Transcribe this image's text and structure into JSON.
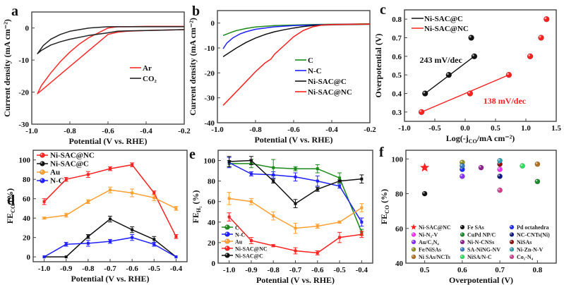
{
  "figure": {
    "panels": [
      "a",
      "b",
      "c",
      "d",
      "e",
      "f"
    ]
  },
  "chart_data": [
    {
      "id": "a",
      "panel_label": "a",
      "type": "line",
      "title": "",
      "xlabel": "Potential (V vs. RHE)",
      "ylabel": "Current density (mA cm⁻²)",
      "xlim": [
        -1.0,
        -0.2
      ],
      "ylim": [
        -30,
        5
      ],
      "xticks": [
        -1.0,
        -0.8,
        -0.6,
        -0.4,
        -0.2
      ],
      "xtick_labels": [
        "-1.0",
        "-0.8",
        "-0.6",
        "-0.4",
        "-0.2"
      ],
      "yticks": [
        -30,
        -20,
        -10,
        0
      ],
      "ytick_labels": [
        "-30",
        "-20",
        "-10",
        "0"
      ],
      "legend_position": "center-right",
      "series": [
        {
          "name": "Ar",
          "color": "#ff2a2a",
          "x": [
            -0.2,
            -0.4,
            -0.5,
            -0.55,
            -0.6,
            -0.65,
            -0.7,
            -0.75,
            -0.8,
            -0.85,
            -0.9,
            -0.95,
            -0.97,
            -0.96,
            -0.93,
            -0.9,
            -0.85,
            -0.8,
            -0.75,
            -0.7,
            -0.65,
            -0.6,
            -0.55,
            -0.5,
            -0.4,
            -0.2
          ],
          "y": [
            0.5,
            0.5,
            0.4,
            0.4,
            0.0,
            -1.5,
            -3.0,
            -5.0,
            -7.5,
            -10.5,
            -14.0,
            -18.0,
            -20.5,
            -20.0,
            -18.5,
            -17.0,
            -14.5,
            -12.0,
            -9.5,
            -7.0,
            -4.5,
            -2.0,
            -1.3,
            -1.0,
            -0.8,
            -0.5
          ]
        },
        {
          "name": "CO₂",
          "color": "#222222",
          "x": [
            -0.2,
            -0.4,
            -0.5,
            -0.6,
            -0.7,
            -0.8,
            -0.85,
            -0.9,
            -0.94,
            -0.97,
            -0.95,
            -0.9,
            -0.85,
            -0.8,
            -0.7,
            -0.6,
            -0.55,
            -0.5,
            -0.4,
            -0.2
          ],
          "y": [
            0.4,
            0.4,
            0.4,
            0.4,
            0.0,
            -1.0,
            -2.0,
            -3.5,
            -5.5,
            -8.0,
            -7.0,
            -5.3,
            -4.3,
            -3.5,
            -2.3,
            -1.5,
            -1.0,
            -0.9,
            -0.8,
            -0.5
          ]
        }
      ]
    },
    {
      "id": "b",
      "panel_label": "b",
      "type": "line",
      "title": "",
      "xlabel": "Potential (V vs. RHE)",
      "ylabel": "Current density (mA cm⁻²)",
      "xlim": [
        -1.0,
        -0.2
      ],
      "ylim": [
        -40,
        5
      ],
      "xticks": [
        -1.0,
        -0.8,
        -0.6,
        -0.4,
        -0.2
      ],
      "xtick_labels": [
        "-1.0",
        "-0.8",
        "-0.6",
        "-0.4",
        "-0.2"
      ],
      "yticks": [
        -40,
        -30,
        -20,
        -10,
        0
      ],
      "ytick_labels": [
        "-40",
        "-30",
        "-20",
        "-10",
        "0"
      ],
      "legend_position": "center-right",
      "series": [
        {
          "name": "C",
          "color": "#1a8a1a",
          "x": [
            -0.97,
            -0.93,
            -0.9,
            -0.85,
            -0.8,
            -0.7,
            -0.6,
            -0.5,
            -0.4,
            -0.3,
            -0.2
          ],
          "y": [
            -5.0,
            -3.8,
            -3.0,
            -2.2,
            -1.6,
            -1.0,
            -0.8,
            -0.6,
            -0.5,
            -0.4,
            -0.3
          ]
        },
        {
          "name": "N-C",
          "color": "#2020ff",
          "x": [
            -0.97,
            -0.95,
            -0.92,
            -0.88,
            -0.85,
            -0.8,
            -0.75,
            -0.7,
            -0.6,
            -0.5,
            -0.4,
            -0.3,
            -0.2
          ],
          "y": [
            -10.3,
            -8.0,
            -6.0,
            -4.3,
            -3.5,
            -2.5,
            -2.0,
            -1.5,
            -1.0,
            -0.8,
            -0.6,
            -0.5,
            -0.4
          ]
        },
        {
          "name": "Ni-SAC@C",
          "color": "#111111",
          "x": [
            -0.97,
            -0.93,
            -0.9,
            -0.85,
            -0.8,
            -0.75,
            -0.7,
            -0.65,
            -0.6,
            -0.55,
            -0.5,
            -0.4,
            -0.3,
            -0.2
          ],
          "y": [
            -13.5,
            -11.5,
            -10.0,
            -7.8,
            -6.0,
            -4.6,
            -3.5,
            -2.7,
            -2.0,
            -1.4,
            -1.0,
            -0.7,
            -0.6,
            -0.5
          ]
        },
        {
          "name": "Ni-SAC@NC",
          "color": "#ff2020",
          "x": [
            -0.97,
            -0.9,
            -0.85,
            -0.8,
            -0.75,
            -0.72,
            -0.7,
            -0.65,
            -0.6,
            -0.55,
            -0.5,
            -0.45,
            -0.4,
            -0.3,
            -0.2
          ],
          "y": [
            -33.0,
            -27.5,
            -23.5,
            -19.5,
            -16.0,
            -14.5,
            -12.5,
            -9.0,
            -5.5,
            -3.0,
            -1.5,
            -0.8,
            -0.6,
            -0.5,
            -0.4
          ]
        }
      ]
    },
    {
      "id": "c",
      "panel_label": "c",
      "type": "scatter",
      "title": "",
      "xlabel": "Log(-j_CO/mA cm⁻²)",
      "ylabel": "Overpotential (V)",
      "xlim": [
        -1.0,
        1.5
      ],
      "ylim": [
        0.25,
        0.85
      ],
      "xticks": [
        -1.0,
        -0.5,
        0.0,
        0.5,
        1.0,
        1.5
      ],
      "xtick_labels": [
        "-1.0",
        "-0.5",
        "0.0",
        "0.5",
        "1.0",
        "1.5"
      ],
      "yticks": [
        0.3,
        0.4,
        0.5,
        0.6,
        0.7,
        0.8
      ],
      "ytick_labels": [
        "0.3",
        "0.4",
        "0.5",
        "0.6",
        "0.7",
        "0.8"
      ],
      "legend_position": "top-left",
      "series": [
        {
          "name": "Ni-SAC@C",
          "color": "#111111",
          "x": [
            -0.66,
            -0.27,
            0.15,
            0.1
          ],
          "y": [
            0.4,
            0.5,
            0.6,
            0.7
          ],
          "fit_x": [
            -0.66,
            0.15
          ],
          "fit_y": [
            0.4,
            0.6
          ],
          "tafel_slope": "243 mV/dec"
        },
        {
          "name": "Ni-SAC@NC",
          "color": "#ff2020",
          "x": [
            -0.72,
            0.08,
            0.72,
            1.07,
            1.25,
            1.34
          ],
          "y": [
            0.3,
            0.4,
            0.5,
            0.6,
            0.7,
            0.8
          ],
          "fit_x": [
            -0.72,
            0.72
          ],
          "fit_y": [
            0.3,
            0.5
          ],
          "tafel_slope": "138 mV/dec"
        }
      ],
      "annotations": [
        {
          "text": "243 mV/dec",
          "color": "#111111",
          "x": -0.75,
          "y": 0.565
        },
        {
          "text": "138 mV/dec",
          "color": "#ff2020",
          "x": 0.3,
          "y": 0.345
        }
      ]
    },
    {
      "id": "d",
      "panel_label": "d",
      "type": "line",
      "title": "",
      "xlabel": "Potential (V vs. RHE)",
      "ylabel": "FE_CO (%)",
      "xlim": [
        -1.05,
        -0.35
      ],
      "ylim": [
        -5,
        110
      ],
      "xticks": [
        -1.0,
        -0.9,
        -0.8,
        -0.7,
        -0.6,
        -0.5,
        -0.4
      ],
      "xtick_labels": [
        "-1.0",
        "-0.9",
        "-0.8",
        "-0.7",
        "-0.6",
        "-0.5",
        "-0.4"
      ],
      "yticks": [
        0,
        20,
        40,
        60,
        80,
        100
      ],
      "ytick_labels": [
        "0",
        "20",
        "40",
        "60",
        "80",
        "100"
      ],
      "legend_position": "top-left",
      "x": [
        -1.0,
        -0.9,
        -0.8,
        -0.7,
        -0.6,
        -0.5,
        -0.4
      ],
      "series": [
        {
          "name": "Ni-SAC@NC",
          "color": "#ff2020",
          "values": [
            57,
            80,
            85,
            91,
            95,
            66,
            21
          ],
          "err": [
            3,
            2,
            3,
            2,
            2,
            2,
            2
          ]
        },
        {
          "name": "Ni-SAC@C",
          "color": "#111111",
          "values": [
            0,
            0,
            21,
            39,
            28,
            18,
            0
          ],
          "err": [
            0,
            0,
            2,
            3,
            3,
            3,
            0
          ]
        },
        {
          "name": "Au",
          "color": "#ffa030",
          "values": [
            40,
            43,
            57,
            69,
            66,
            61,
            50
          ],
          "err": [
            1,
            2,
            2,
            3,
            4,
            3,
            2
          ]
        },
        {
          "name": "N-C",
          "color": "#2020ff",
          "values": [
            0,
            13,
            14,
            16,
            20,
            13,
            0
          ],
          "err": [
            0,
            2,
            3,
            2,
            3,
            2,
            0
          ]
        }
      ]
    },
    {
      "id": "e",
      "panel_label": "e",
      "type": "line",
      "title": "",
      "xlabel": "Potential (V vs. RHE)",
      "ylabel": "FE_H₂ (%)",
      "xlim": [
        -1.05,
        -0.35
      ],
      "ylim": [
        0,
        110
      ],
      "xticks": [
        -1.0,
        -0.9,
        -0.8,
        -0.7,
        -0.6,
        -0.5,
        -0.4
      ],
      "xtick_labels": [
        "-1.0",
        "-0.9",
        "-0.8",
        "-0.7",
        "-0.6",
        "-0.5",
        "-0.4"
      ],
      "yticks": [
        0,
        20,
        40,
        60,
        80,
        100
      ],
      "ytick_labels": [
        "0",
        "20",
        "40",
        "60",
        "80",
        "100"
      ],
      "legend_position": "bottom-left",
      "x": [
        -1.0,
        -0.9,
        -0.8,
        -0.7,
        -0.6,
        -0.5,
        -0.4
      ],
      "series": [
        {
          "name": "C",
          "color": "#1a8a1a",
          "values": [
            97,
            97,
            93,
            92,
            92,
            83,
            30
          ],
          "err": [
            3,
            4,
            8,
            2,
            4,
            5,
            3
          ]
        },
        {
          "name": "N-C",
          "color": "#2020ff",
          "values": [
            98,
            87,
            86,
            84,
            80,
            75,
            40
          ],
          "err": [
            5,
            2,
            3,
            4,
            5,
            2,
            4
          ]
        },
        {
          "name": "Au",
          "color": "#ffa030",
          "values": [
            63,
            60,
            46,
            34,
            36,
            40,
            54
          ],
          "err": [
            6,
            3,
            4,
            5,
            2,
            1,
            4
          ]
        },
        {
          "name": "Ni-SAC@NC",
          "color": "#ff2020",
          "values": [
            45,
            22,
            17,
            12,
            10,
            25,
            28
          ],
          "err": [
            4,
            3,
            1,
            3,
            2,
            5,
            3
          ]
        },
        {
          "name": "Ni-SAC@C",
          "color": "#111111",
          "values": [
            99,
            100,
            80,
            58,
            72,
            80,
            82
          ],
          "err": [
            5,
            4,
            2,
            4,
            2,
            1,
            4
          ]
        }
      ]
    },
    {
      "id": "f",
      "panel_label": "f",
      "type": "scatter",
      "title": "",
      "xlabel": "Overpotential (V)",
      "ylabel": "FE_CO (%)",
      "xlim": [
        0.45,
        0.85
      ],
      "ylim": [
        40,
        105
      ],
      "xticks": [
        0.5,
        0.6,
        0.7,
        0.8
      ],
      "xtick_labels": [
        "0.5",
        "0.6",
        "0.7",
        "0.8"
      ],
      "yticks": [
        40,
        60,
        80,
        100
      ],
      "ytick_labels": [
        "40",
        "60",
        "80",
        "100"
      ],
      "legend_position": "bottom",
      "series": [
        {
          "name": "Ni-SAC@NC",
          "color": "#ff2020",
          "marker": "star",
          "x": 0.5,
          "y": 95
        },
        {
          "name": "Fe SAs",
          "color": "#111111",
          "marker": "ball",
          "x": 0.5,
          "y": 80
        },
        {
          "name": "Pd octahedra",
          "color": "#1a2aff",
          "marker": "ball",
          "x": 0.6,
          "y": 94
        },
        {
          "name": "Ni-N₃-V",
          "color": "#ff30ff",
          "marker": "ball",
          "x": 0.7,
          "y": 94
        },
        {
          "name": "CuPd NP/C",
          "color": "#1a8a2a",
          "marker": "ball",
          "x": 0.8,
          "y": 87
        },
        {
          "name": "NC-CNTs(Ni)",
          "color": "#101a80",
          "marker": "ball",
          "x": 0.7,
          "y": 90
        },
        {
          "name": "Au/C₃N₄",
          "color": "#8a30ff",
          "marker": "ball",
          "x": 0.6,
          "y": 90
        },
        {
          "name": "Ni-N-CNSs",
          "color": "#902090",
          "marker": "ball",
          "x": 0.65,
          "y": 95
        },
        {
          "name": "NiSAs",
          "color": "#901010",
          "marker": "ball",
          "x": 0.7,
          "y": 97
        },
        {
          "name": "Fe/NiSAs",
          "color": "#909020",
          "marker": "ball",
          "x": 0.6,
          "y": 98
        },
        {
          "name": "SA-NiNG-NV",
          "color": "#3a7ac0",
          "marker": "ball",
          "x": 0.6,
          "y": 96
        },
        {
          "name": "Ni-Zn-N-V",
          "color": "#30a0b0",
          "marker": "ball",
          "x": 0.7,
          "y": 99
        },
        {
          "name": "Ni SAs/NCTs",
          "color": "#b07020",
          "marker": "ball",
          "x": 0.8,
          "y": 97
        },
        {
          "name": "NiSA/N-C",
          "color": "#30e060",
          "marker": "ball",
          "x": 0.76,
          "y": 96
        },
        {
          "name": "Co₁-N₄",
          "color": "#d04090",
          "marker": "ball",
          "x": 0.7,
          "y": 82
        }
      ]
    }
  ]
}
